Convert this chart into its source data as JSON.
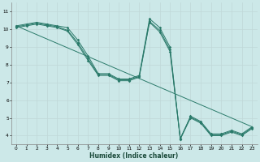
{
  "xlabel": "Humidex (Indice chaleur)",
  "ylabel": "",
  "bg_color": "#cce8e8",
  "grid_color": "#c0d8d8",
  "line_color": "#2a7a6a",
  "xlim": [
    -0.5,
    23.5
  ],
  "ylim": [
    3.5,
    11.5
  ],
  "xticks": [
    0,
    1,
    2,
    3,
    4,
    5,
    6,
    7,
    8,
    9,
    10,
    11,
    12,
    13,
    14,
    15,
    16,
    17,
    18,
    19,
    20,
    21,
    22,
    23
  ],
  "yticks": [
    4,
    5,
    6,
    7,
    8,
    9,
    10,
    11
  ],
  "line1": {
    "x": [
      0,
      1,
      2,
      3,
      4,
      5,
      6,
      7,
      8,
      9,
      10,
      11,
      12,
      13,
      14,
      15,
      16,
      17,
      18,
      19,
      20,
      21,
      22,
      23
    ],
    "y": [
      10.2,
      10.3,
      10.4,
      10.3,
      10.2,
      10.1,
      9.4,
      8.5,
      7.5,
      7.5,
      7.2,
      7.2,
      7.4,
      10.6,
      10.1,
      9.0,
      3.8,
      5.1,
      4.8,
      4.1,
      4.1,
      4.3,
      4.1,
      4.5
    ]
  },
  "line2": {
    "x": [
      0,
      1,
      2,
      3,
      4,
      5,
      6,
      7,
      8,
      9,
      10,
      11,
      12,
      13,
      14,
      15,
      16,
      17,
      18,
      19,
      20,
      21,
      22,
      23
    ],
    "y": [
      10.15,
      10.25,
      10.35,
      10.25,
      10.15,
      9.95,
      9.25,
      8.35,
      7.45,
      7.45,
      7.15,
      7.15,
      7.35,
      10.45,
      9.95,
      8.85,
      3.85,
      5.05,
      4.75,
      4.05,
      4.05,
      4.25,
      4.05,
      4.45
    ]
  },
  "line3": {
    "x": [
      0,
      1,
      2,
      3,
      4,
      5,
      6,
      7,
      8,
      9,
      10,
      11,
      12,
      13,
      14,
      15,
      16,
      17,
      18,
      19,
      20,
      21,
      22,
      23
    ],
    "y": [
      10.1,
      10.2,
      10.3,
      10.2,
      10.1,
      9.9,
      9.15,
      8.25,
      7.4,
      7.4,
      7.1,
      7.1,
      7.3,
      10.4,
      9.85,
      8.75,
      3.8,
      5.0,
      4.7,
      4.0,
      4.0,
      4.2,
      4.0,
      4.4
    ]
  },
  "line4": {
    "x": [
      0,
      23
    ],
    "y": [
      10.2,
      4.5
    ]
  }
}
